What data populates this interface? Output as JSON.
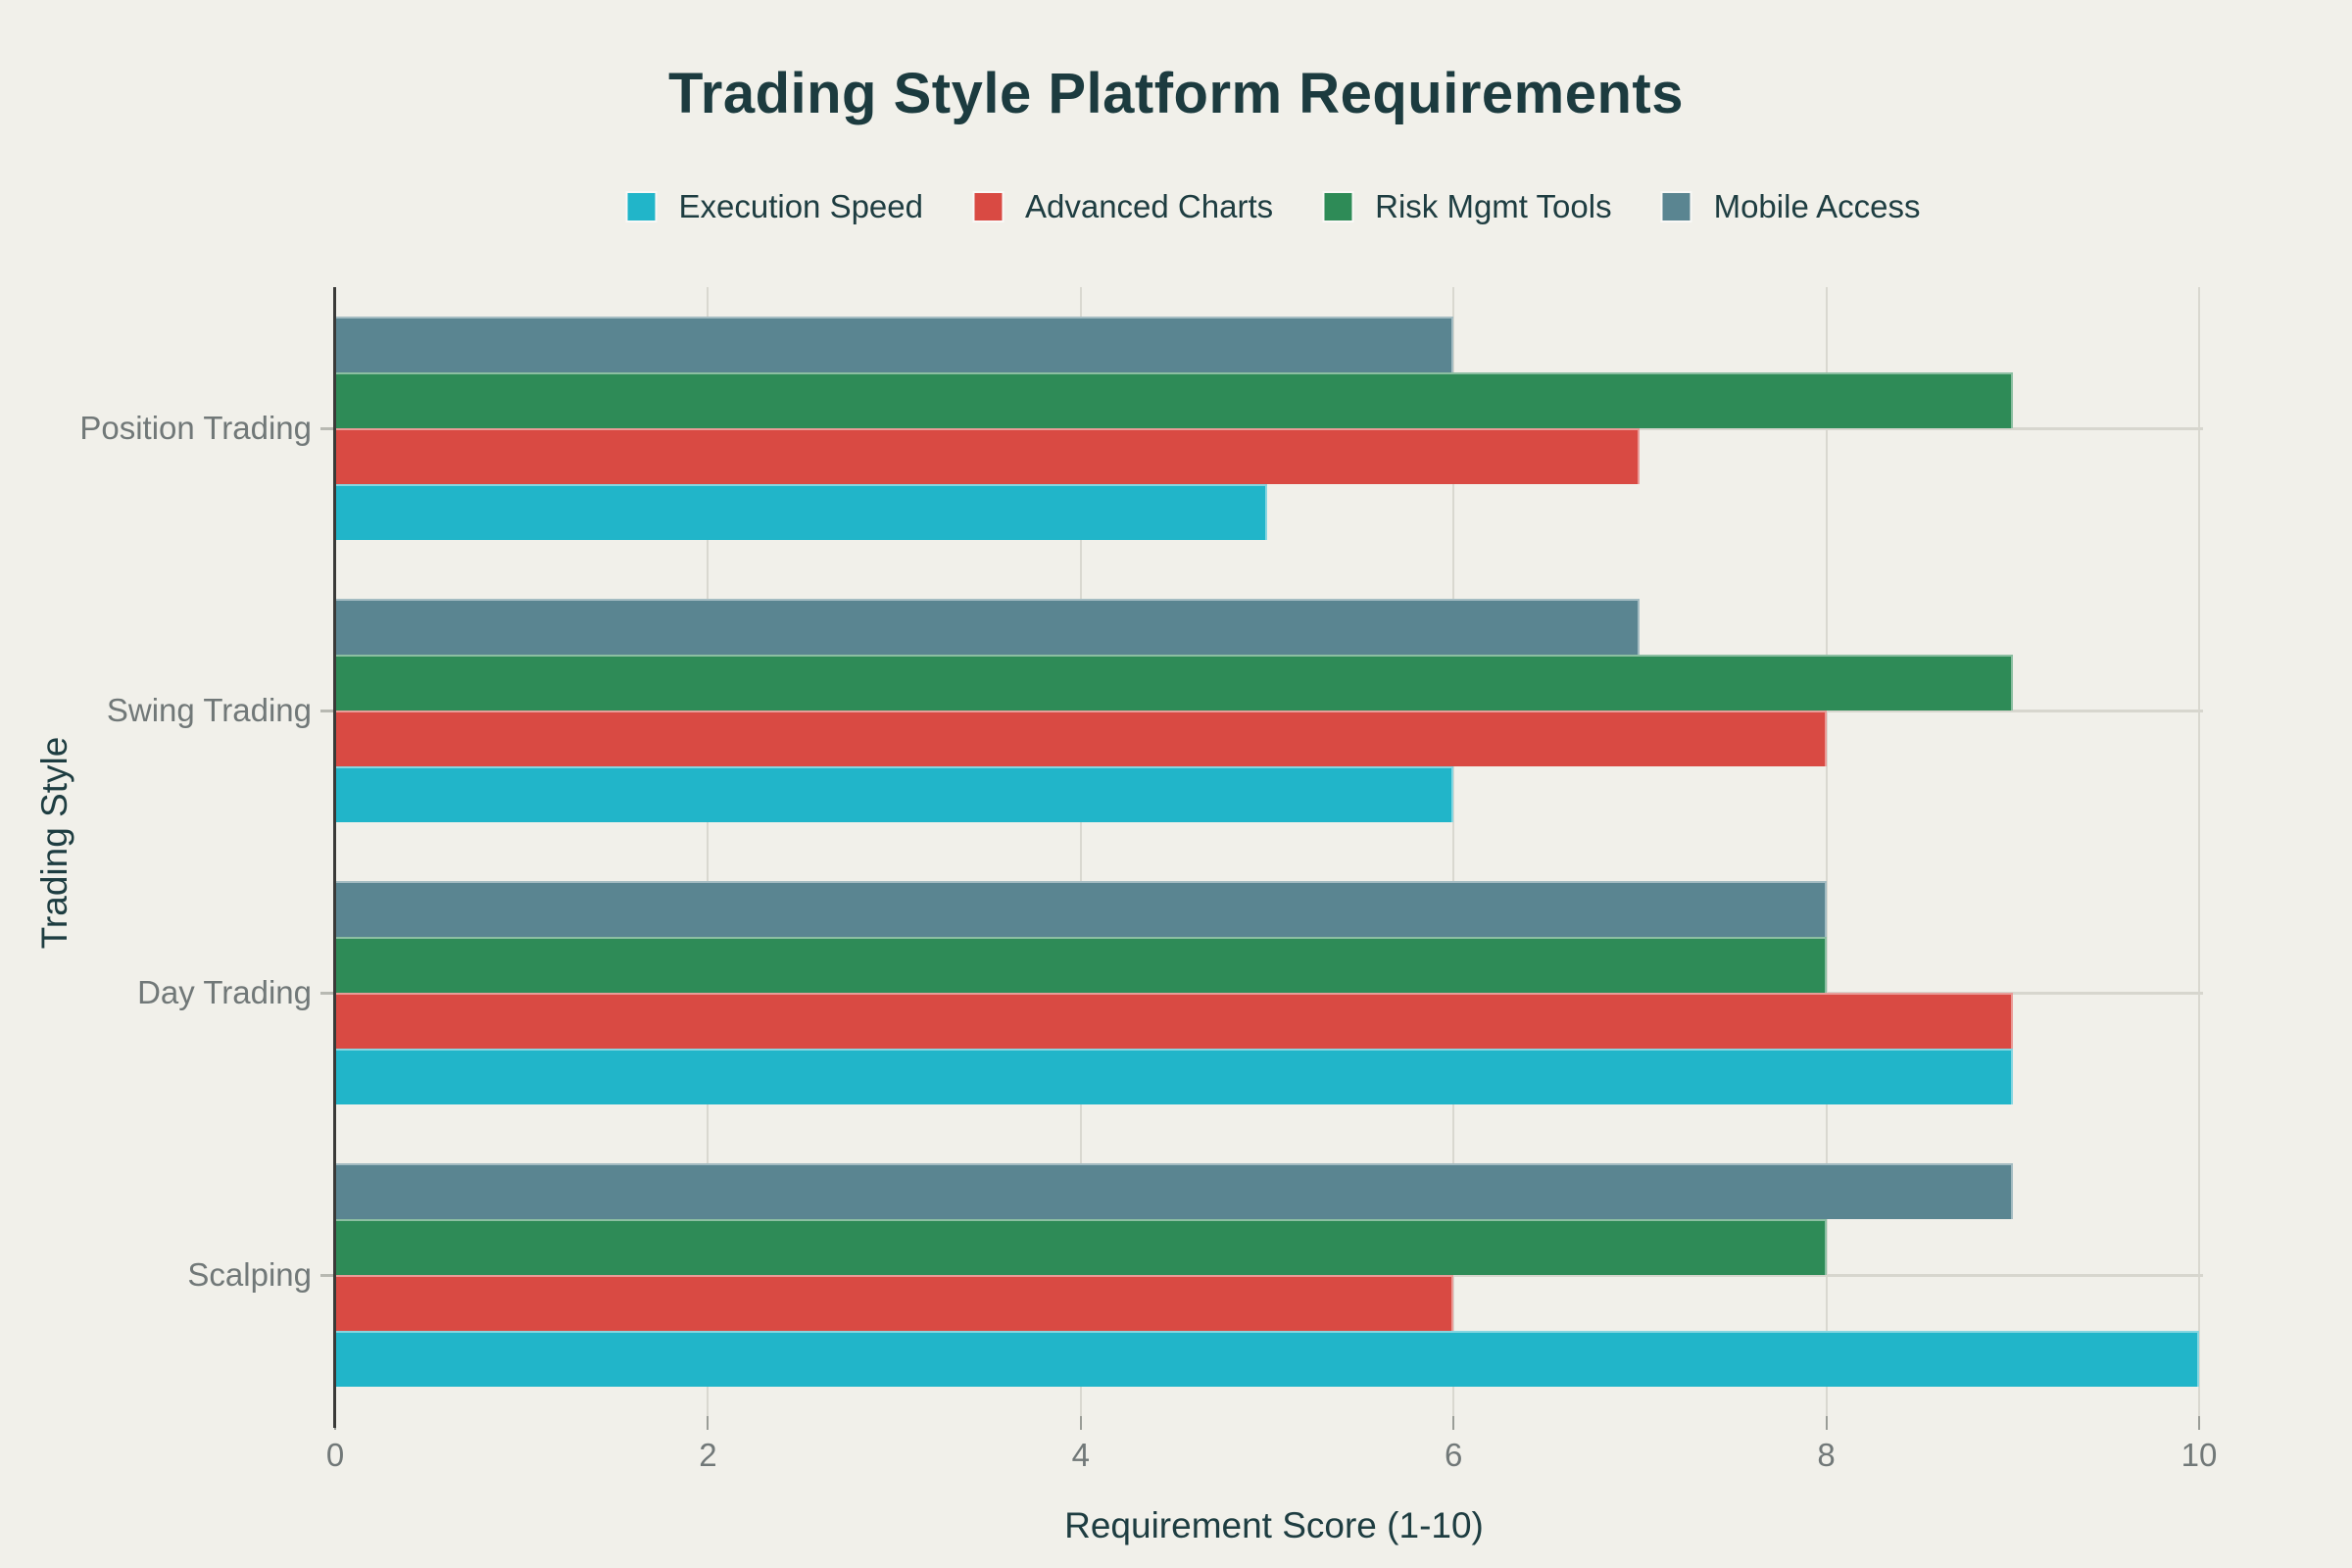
{
  "chart_data": {
    "type": "bar",
    "orientation": "horizontal",
    "grouped": true,
    "title": "Trading Style Platform Requirements",
    "xlabel": "Requirement Score (1-10)",
    "ylabel": "Trading Style",
    "categories": [
      "Position Trading",
      "Swing Trading",
      "Day Trading",
      "Scalping"
    ],
    "series": [
      {
        "name": "Execution Speed",
        "color": "#21b5c9",
        "values": [
          5,
          6,
          9,
          10
        ]
      },
      {
        "name": "Advanced Charts",
        "color": "#d94a43",
        "values": [
          7,
          8,
          9,
          6
        ]
      },
      {
        "name": "Risk Mgmt Tools",
        "color": "#2e8b57",
        "values": [
          9,
          9,
          8,
          8
        ]
      },
      {
        "name": "Mobile Access",
        "color": "#5a8591",
        "values": [
          6,
          7,
          8,
          9
        ]
      }
    ],
    "xlim": [
      0,
      10
    ],
    "xticks": [
      0,
      2,
      4,
      6,
      8,
      10
    ],
    "grid": true,
    "legend_position": "top-center",
    "bar_stack_order_top_to_bottom": [
      "Mobile Access",
      "Risk Mgmt Tools",
      "Advanced Charts",
      "Execution Speed"
    ],
    "colors": {
      "background": "#f1f0ea",
      "title_text": "#1c3b3f",
      "axis_label_text": "#1e3d41",
      "tick_label_text": "#717878",
      "gridline": "#d9d8d0",
      "axis_spine": "#3a3a38"
    }
  }
}
